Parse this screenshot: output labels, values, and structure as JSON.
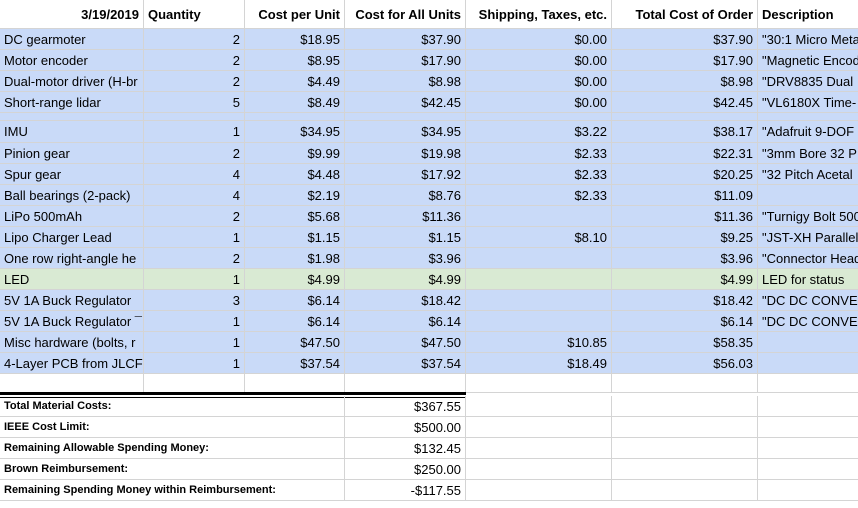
{
  "header": {
    "date": "3/19/2019",
    "quantity": "Quantity",
    "cost_per_unit": "Cost per Unit",
    "cost_all_units": "Cost for All Units",
    "shipping": "Shipping, Taxes, etc.",
    "total": "Total Cost of Order",
    "description": "Description"
  },
  "rows": [
    {
      "item": "DC gearmoter",
      "qty": "2",
      "unit": "$18.95",
      "all": "$37.90",
      "ship": "$0.00",
      "total": "$37.90",
      "desc": "\"30:1 Micro Meta"
    },
    {
      "item": "Motor encoder",
      "qty": "2",
      "unit": "$8.95",
      "all": "$17.90",
      "ship": "$0.00",
      "total": "$17.90",
      "desc": "\"Magnetic Encod"
    },
    {
      "item": "Dual-motor driver (H-br",
      "qty": "2",
      "unit": "$4.49",
      "all": "$8.98",
      "ship": "$0.00",
      "total": "$8.98",
      "desc": "\"DRV8835 Dual"
    },
    {
      "item": "Short-range lidar",
      "qty": "5",
      "unit": "$8.49",
      "all": "$42.45",
      "ship": "$0.00",
      "total": "$42.45",
      "desc": "\"VL6180X Time-"
    },
    {
      "item": "",
      "qty": "",
      "unit": "",
      "all": "",
      "ship": "",
      "total": "",
      "desc": ""
    },
    {
      "item": "IMU",
      "qty": "1",
      "unit": "$34.95",
      "all": "$34.95",
      "ship": "$3.22",
      "total": "$38.17",
      "desc": "\"Adafruit 9-DOF"
    },
    {
      "item": "Pinion gear",
      "qty": "2",
      "unit": "$9.99",
      "all": "$19.98",
      "ship": "$2.33",
      "total": "$22.31",
      "desc": "\"3mm Bore 32 P"
    },
    {
      "item": "Spur gear",
      "qty": "4",
      "unit": "$4.48",
      "all": "$17.92",
      "ship": "$2.33",
      "total": "$20.25",
      "desc": "\"32 Pitch Acetal"
    },
    {
      "item": "Ball bearings (2-pack)",
      "qty": "4",
      "unit": "$2.19",
      "all": "$8.76",
      "ship": "$2.33",
      "total": "$11.09",
      "desc": ""
    },
    {
      "item": "LiPo 500mAh",
      "qty": "2",
      "unit": "$5.68",
      "all": "$11.36",
      "ship": "",
      "total": "$11.36",
      "desc": "\"Turnigy Bolt 500"
    },
    {
      "item": "Lipo Charger Lead",
      "qty": "1",
      "unit": "$1.15",
      "all": "$1.15",
      "ship": "$8.10",
      "total": "$9.25",
      "desc": "\"JST-XH Parallel"
    },
    {
      "item": "One row right-angle he",
      "qty": "2",
      "unit": "$1.98",
      "all": "$3.96",
      "ship": "",
      "total": "$3.96",
      "desc": "\"Connector Head"
    },
    {
      "item": "LED",
      "qty": "1",
      "unit": "$4.99",
      "all": "$4.99",
      "ship": "",
      "total": "$4.99",
      "desc": "LED for status"
    },
    {
      "item": "5V 1A Buck Regulator",
      "qty": "3",
      "unit": "$6.14",
      "all": "$18.42",
      "ship": "",
      "total": "$18.42",
      "desc": "\"DC DC CONVE"
    },
    {
      "item": "5V 1A Buck Regulator ¯",
      "qty": "1",
      "unit": "$6.14",
      "all": "$6.14",
      "ship": "",
      "total": "$6.14",
      "desc": "\"DC DC CONVE"
    },
    {
      "item": "Misc hardware (bolts, r",
      "qty": "1",
      "unit": "$47.50",
      "all": "$47.50",
      "ship": "$10.85",
      "total": "$58.35",
      "desc": ""
    },
    {
      "item": "4-Layer PCB from JLCF",
      "qty": "1",
      "unit": "$37.54",
      "all": "$37.54",
      "ship": "$18.49",
      "total": "$56.03",
      "desc": ""
    }
  ],
  "summary": [
    {
      "label": "Total Material Costs:",
      "value": "$367.55"
    },
    {
      "label": "IEEE Cost Limit:",
      "value": "$500.00"
    },
    {
      "label": "Remaining Allowable Spending Money:",
      "value": "$132.45"
    },
    {
      "label": "Brown Reimbursement:",
      "value": "$250.00"
    },
    {
      "label": "Remaining Spending Money within Reimbursement:",
      "value": "-$117.55"
    }
  ],
  "colors": {
    "row_blue": "#c9daf8",
    "row_green": "#d9ead3"
  }
}
